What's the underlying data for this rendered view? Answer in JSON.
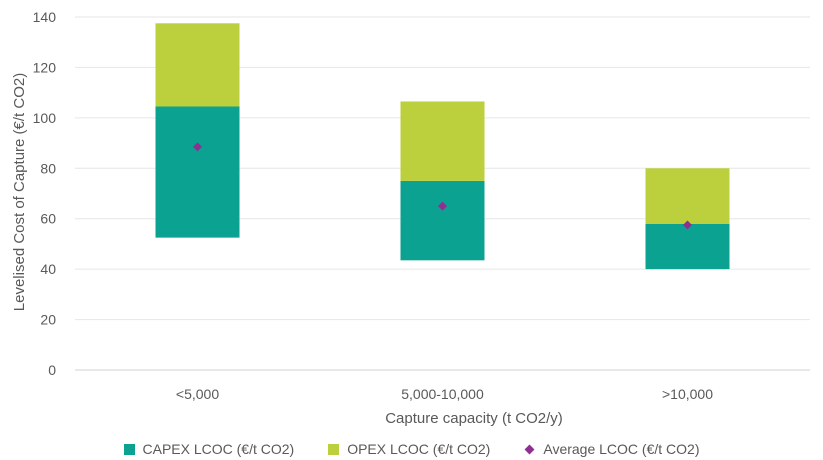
{
  "chart_data": {
    "type": "bar",
    "categories": [
      "<5,000",
      "5,000-10,000",
      ">10,000"
    ],
    "xlabel": "Capture capacity (t CO2/y)",
    "ylabel": "Levelised Cost of Capture (€/t CO2)",
    "ylim": [
      0,
      140
    ],
    "yticks": [
      0,
      20,
      40,
      60,
      80,
      100,
      120,
      140
    ],
    "grid": true,
    "legend_position": "bottom",
    "base_values": [
      52.5,
      43.5,
      40
    ],
    "series": [
      {
        "name": "CAPEX LCOC (€/t CO2)",
        "type": "stacked-bar",
        "values": [
          52,
          31.5,
          18
        ],
        "color": "#0ca291"
      },
      {
        "name": "OPEX LCOC (€/t CO2)",
        "type": "stacked-bar",
        "values": [
          33,
          31.5,
          22
        ],
        "color": "#bccf3c"
      },
      {
        "name": "Average LCOC (€/t CO2)",
        "type": "marker",
        "values": [
          88.5,
          65,
          57.5
        ],
        "color": "#8e2f91"
      }
    ]
  }
}
